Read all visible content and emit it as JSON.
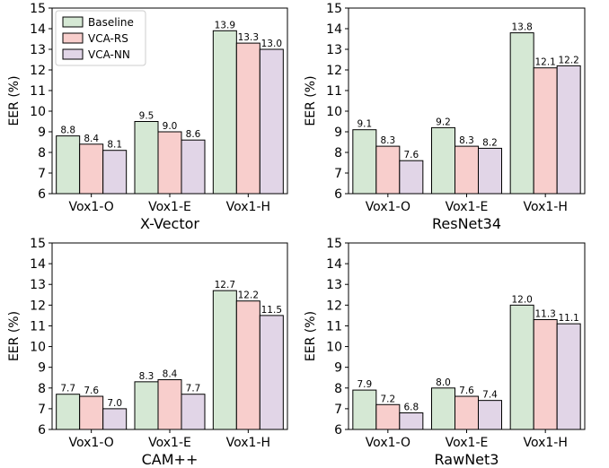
{
  "chart_data": [
    {
      "type": "bar",
      "xlabel": "X-Vector",
      "ylabel": "EER (%)",
      "ylim": [
        6,
        15
      ],
      "yticks": [
        6,
        7,
        8,
        9,
        10,
        11,
        12,
        13,
        14,
        15
      ],
      "categories": [
        "Vox1-O",
        "Vox1-E",
        "Vox1-H"
      ],
      "series": [
        {
          "name": "Baseline",
          "values": [
            8.8,
            9.5,
            13.9
          ],
          "labels": [
            "8.8",
            "9.5",
            "13.9"
          ]
        },
        {
          "name": "VCA-RS",
          "values": [
            8.4,
            9.0,
            13.3
          ],
          "labels": [
            "8.4",
            "9.0",
            "13.3"
          ]
        },
        {
          "name": "VCA-NN",
          "values": [
            8.1,
            8.6,
            13.0
          ],
          "labels": [
            "8.1",
            "8.6",
            "13.0"
          ]
        }
      ],
      "legend": "top-left"
    },
    {
      "type": "bar",
      "xlabel": "ResNet34",
      "ylabel": "EER (%)",
      "ylim": [
        6,
        15
      ],
      "yticks": [
        6,
        7,
        8,
        9,
        10,
        11,
        12,
        13,
        14,
        15
      ],
      "categories": [
        "Vox1-O",
        "Vox1-E",
        "Vox1-H"
      ],
      "series": [
        {
          "name": "Baseline",
          "values": [
            9.1,
            9.2,
            13.8
          ],
          "labels": [
            "9.1",
            "9.2",
            "13.8"
          ]
        },
        {
          "name": "VCA-RS",
          "values": [
            8.3,
            8.3,
            12.1
          ],
          "labels": [
            "8.3",
            "8.3",
            "12.1"
          ]
        },
        {
          "name": "VCA-NN",
          "values": [
            7.6,
            8.2,
            12.2
          ],
          "labels": [
            "7.6",
            "8.2",
            "12.2"
          ]
        }
      ]
    },
    {
      "type": "bar",
      "xlabel": "CAM++",
      "ylabel": "EER (%)",
      "ylim": [
        6,
        15
      ],
      "yticks": [
        6,
        7,
        8,
        9,
        10,
        11,
        12,
        13,
        14,
        15
      ],
      "categories": [
        "Vox1-O",
        "Vox1-E",
        "Vox1-H"
      ],
      "series": [
        {
          "name": "Baseline",
          "values": [
            7.7,
            8.3,
            12.7
          ],
          "labels": [
            "7.7",
            "8.3",
            "12.7"
          ]
        },
        {
          "name": "VCA-RS",
          "values": [
            7.6,
            8.4,
            12.2
          ],
          "labels": [
            "7.6",
            "8.4",
            "12.2"
          ]
        },
        {
          "name": "VCA-NN",
          "values": [
            7.0,
            7.7,
            11.5
          ],
          "labels": [
            "7.0",
            "7.7",
            "11.5"
          ]
        }
      ]
    },
    {
      "type": "bar",
      "xlabel": "RawNet3",
      "ylabel": "EER (%)",
      "ylim": [
        6,
        15
      ],
      "yticks": [
        6,
        7,
        8,
        9,
        10,
        11,
        12,
        13,
        14,
        15
      ],
      "categories": [
        "Vox1-O",
        "Vox1-E",
        "Vox1-H"
      ],
      "series": [
        {
          "name": "Baseline",
          "values": [
            7.9,
            8.0,
            12.0
          ],
          "labels": [
            "7.9",
            "8.0",
            "12.0"
          ]
        },
        {
          "name": "VCA-RS",
          "values": [
            7.2,
            7.6,
            11.3
          ],
          "labels": [
            "7.2",
            "7.6",
            "11.3"
          ]
        },
        {
          "name": "VCA-NN",
          "values": [
            6.8,
            7.4,
            11.1
          ],
          "labels": [
            "6.8",
            "7.4",
            "11.1"
          ]
        }
      ]
    }
  ],
  "colors": {
    "Baseline": "#d5e8d4",
    "VCA-RS": "#f8cecc",
    "VCA-NN": "#e1d5e7"
  }
}
